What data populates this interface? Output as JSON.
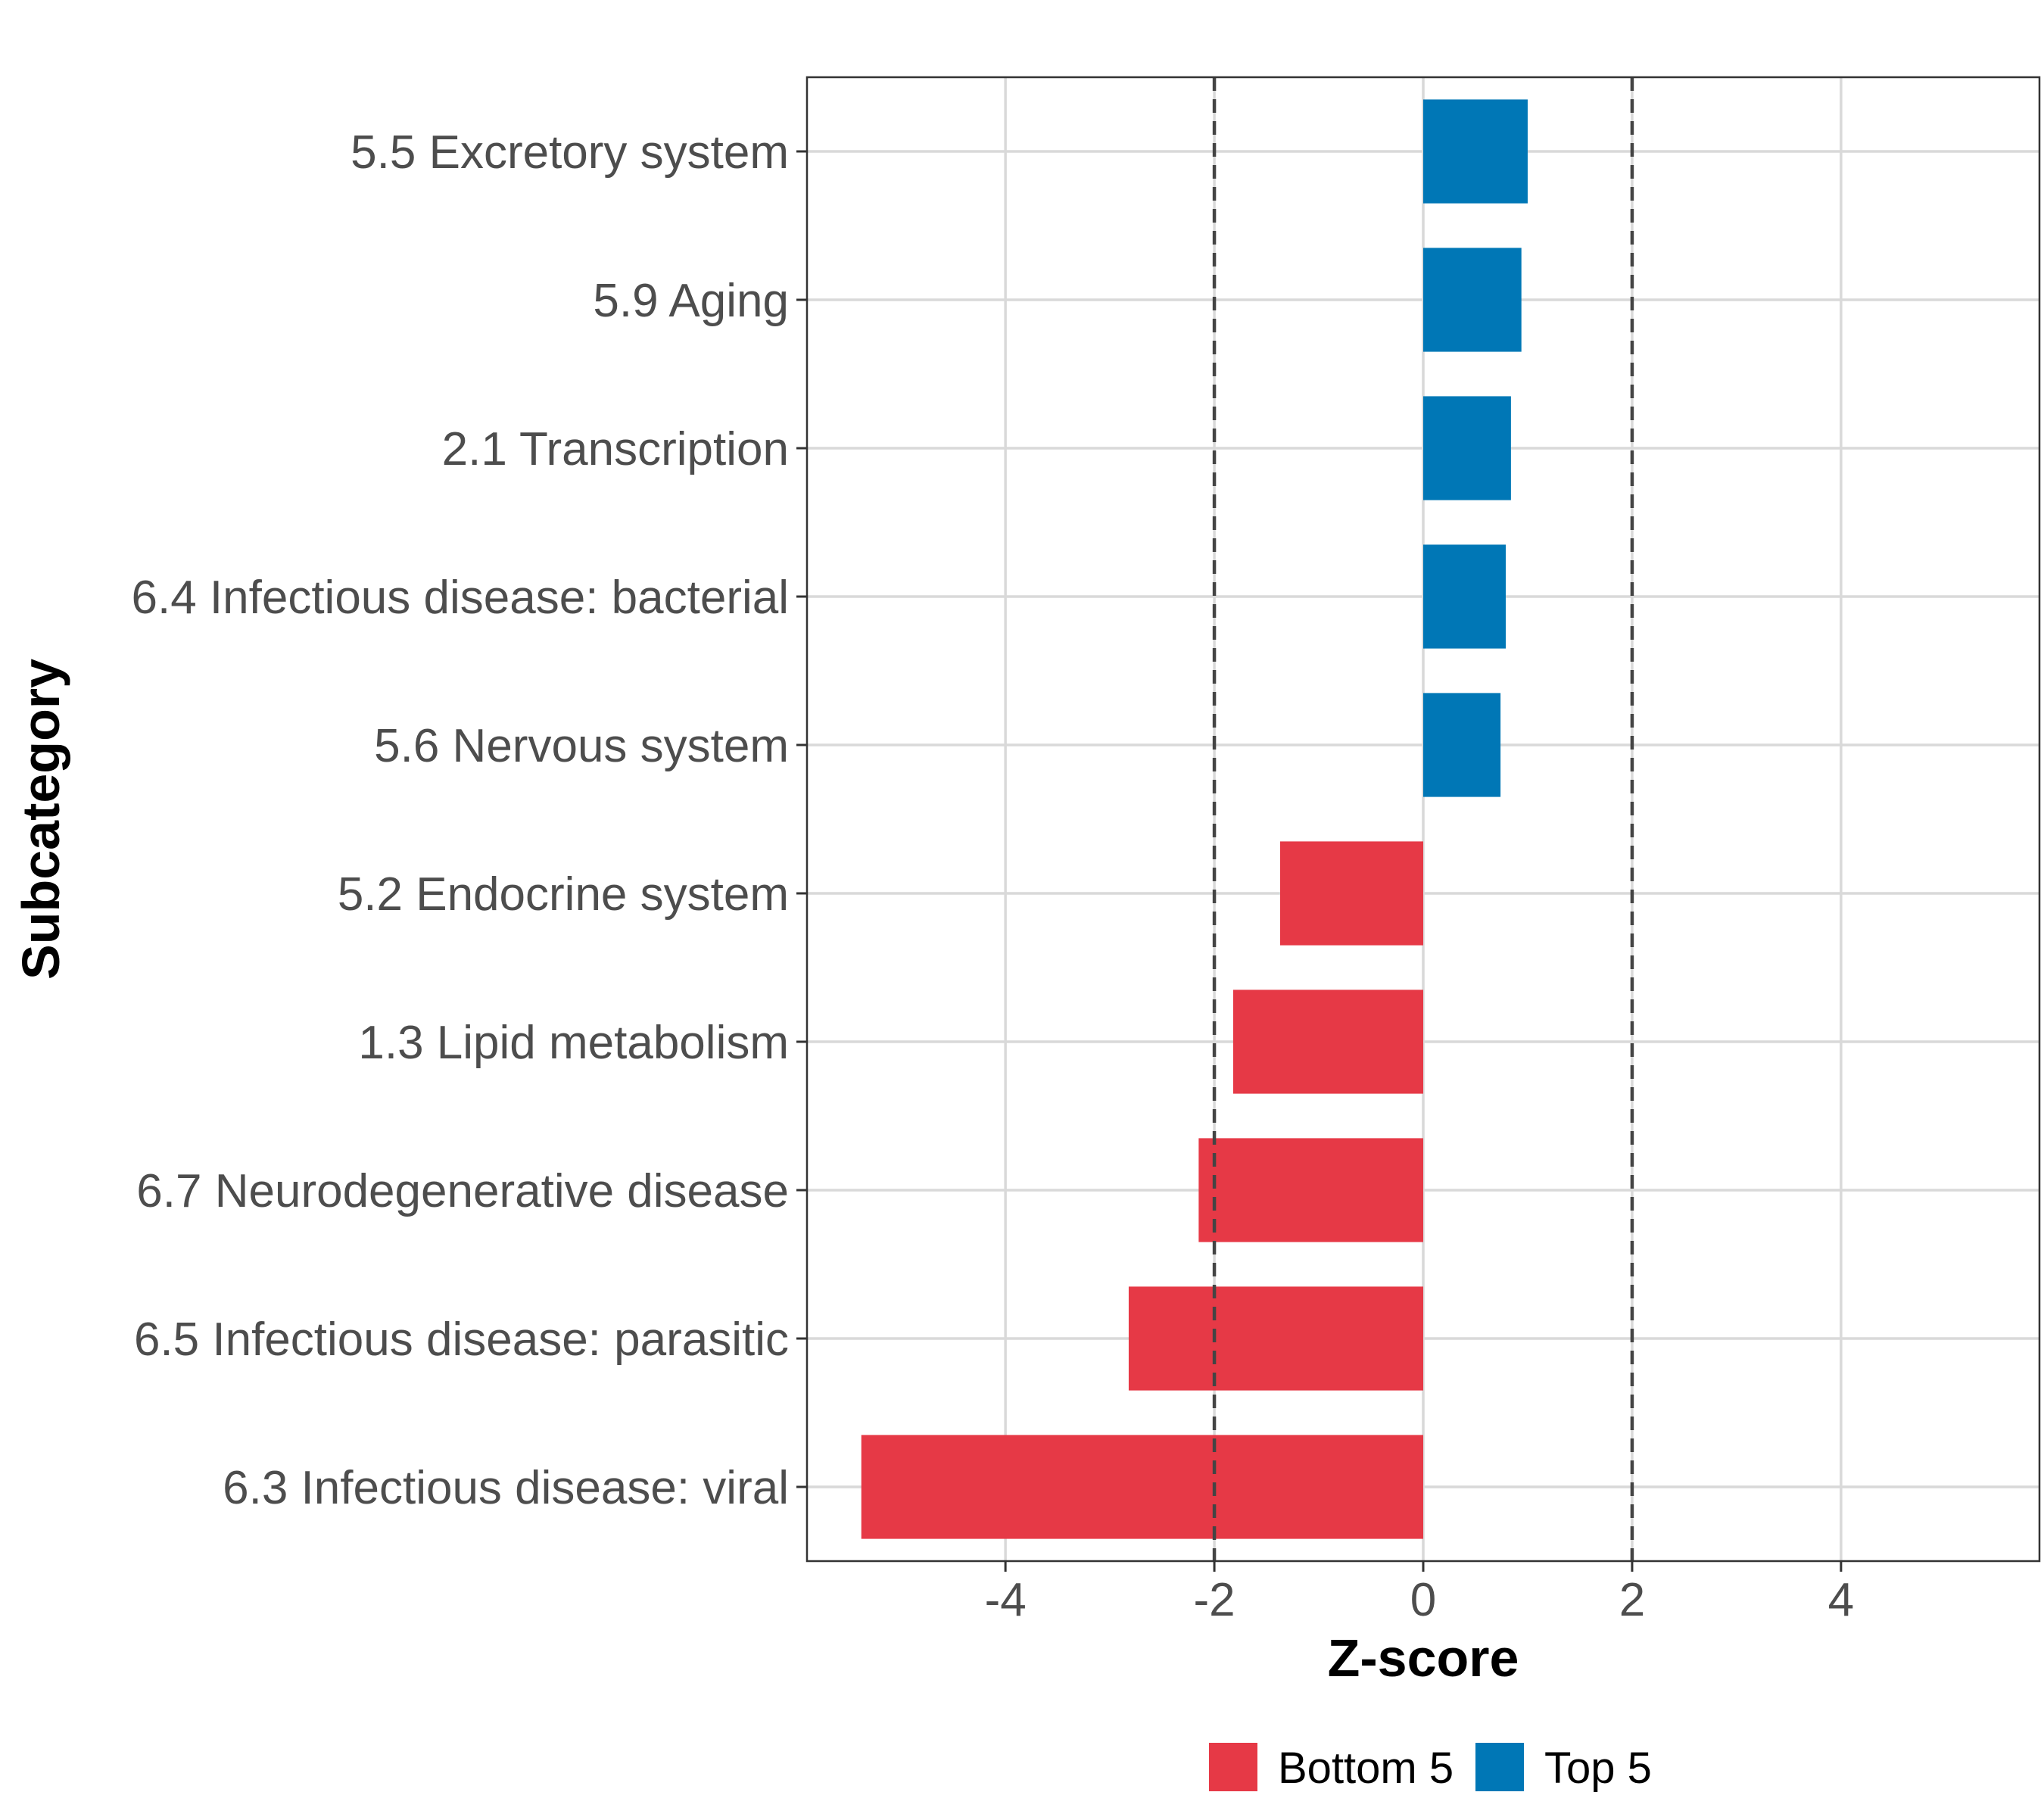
{
  "chart_data": {
    "type": "bar",
    "orientation": "horizontal",
    "xlabel": "Z-score",
    "ylabel": "Subcategory",
    "xlim": [
      -5.9,
      5.9
    ],
    "xticks": [
      -4,
      -2,
      0,
      2,
      4
    ],
    "xtick_labels": [
      "-4",
      "-2",
      "0",
      "2",
      "4"
    ],
    "reference_lines": [
      -2,
      2
    ],
    "grid": true,
    "legend_position": "bottom",
    "categories": [
      "5.5 Excretory system",
      "5.9 Aging",
      "2.1 Transcription",
      "6.4 Infectious disease: bacterial",
      "5.6 Nervous system",
      "5.2 Endocrine system",
      "1.3 Lipid metabolism",
      "6.7 Neurodegenerative disease",
      "6.5 Infectious disease: parasitic",
      "6.3 Infectious disease: viral"
    ],
    "values": [
      1.0,
      0.94,
      0.84,
      0.79,
      0.74,
      -1.37,
      -1.82,
      -2.15,
      -2.82,
      -5.38
    ],
    "groups": [
      "Top 5",
      "Top 5",
      "Top 5",
      "Top 5",
      "Top 5",
      "Bottom 5",
      "Bottom 5",
      "Bottom 5",
      "Bottom 5",
      "Bottom 5"
    ],
    "legend": [
      {
        "name": "Bottom 5",
        "color": "#E63946"
      },
      {
        "name": "Top 5",
        "color": "#0077B6"
      }
    ]
  }
}
